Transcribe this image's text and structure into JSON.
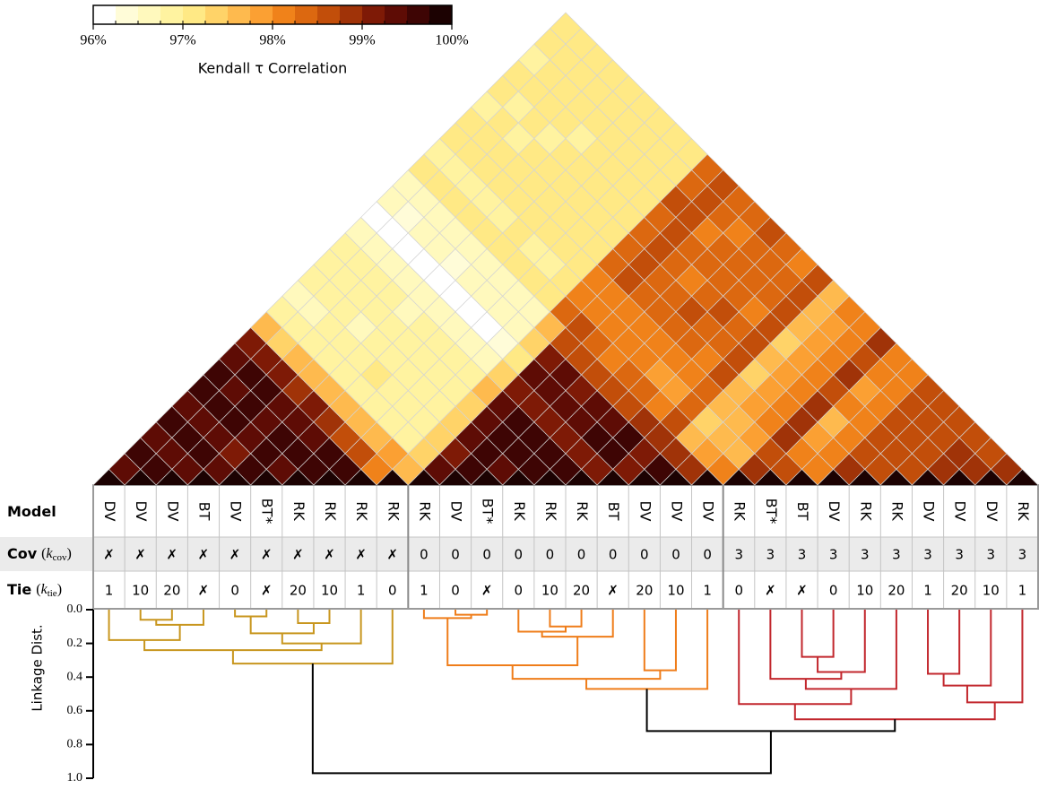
{
  "chart_data": [
    {
      "type": "heatmap",
      "clim": [
        96,
        100
      ],
      "colormap": [
        "#ffffff",
        "#fffcd8",
        "#fff9bd",
        "#fff3a0",
        "#ffe985",
        "#ffd368",
        "#feba4e",
        "#fba033",
        "#f0821a",
        "#dc6810",
        "#c24e0a",
        "#a03308",
        "#7e1a06",
        "#5e0c05",
        "#3e0504",
        "#1c0202"
      ],
      "colorbar_ticks": [
        {
          "value": 96,
          "label": "96%"
        },
        {
          "value": 97,
          "label": "97%"
        },
        {
          "value": 98,
          "label": "98%"
        },
        {
          "value": 99,
          "label": "99%"
        },
        {
          "value": 100,
          "label": "100%"
        }
      ],
      "colorbar_label": "Kendall τ Correlation",
      "matrix": [
        [
          100,
          99.3,
          99.5,
          99.4,
          99.6,
          99.4,
          99.5,
          99.5,
          99.4,
          99.0,
          97.5,
          96.8,
          96.7,
          96.8,
          96.9,
          96.8,
          96.6,
          96.1,
          96.5,
          96.6,
          97.0,
          96.9,
          97.0,
          97.1,
          96.9,
          97.0,
          97.0,
          96.9,
          97.0,
          97.0
        ],
        [
          100,
          99.7,
          99.4,
          99.5,
          99.3,
          99.5,
          99.4,
          99.5,
          99.0,
          97.4,
          96.8,
          96.7,
          96.8,
          96.8,
          96.9,
          96.6,
          96.1,
          96.4,
          96.6,
          97.1,
          96.9,
          97.0,
          97.0,
          97.0,
          96.9,
          97.2,
          97.0,
          97.0,
          97.1
        ],
        [
          100,
          99.4,
          99.5,
          99.3,
          99.5,
          99.6,
          99.5,
          99.0,
          97.5,
          96.9,
          96.8,
          96.8,
          96.9,
          96.8,
          96.6,
          96.2,
          96.5,
          96.6,
          97.0,
          96.9,
          97.1,
          97.0,
          96.9,
          97.0,
          97.1,
          97.2,
          97.0,
          97.0
        ],
        [
          100,
          99.3,
          99.2,
          99.4,
          99.3,
          99.4,
          98.9,
          97.6,
          96.8,
          96.9,
          96.7,
          96.8,
          96.8,
          96.7,
          96.2,
          96.5,
          96.7,
          97.0,
          96.9,
          97.0,
          97.1,
          97.0,
          96.9,
          97.0,
          97.0,
          97.1,
          97.0
        ],
        [
          100,
          99.6,
          99.5,
          99.5,
          99.4,
          99.0,
          97.6,
          96.8,
          96.8,
          96.9,
          96.8,
          96.7,
          96.6,
          96.1,
          96.4,
          96.6,
          97.0,
          96.9,
          97.0,
          97.0,
          97.1,
          97.0,
          96.9,
          97.0,
          97.0,
          97.1
        ],
        [
          100,
          99.4,
          99.5,
          99.3,
          98.9,
          97.6,
          96.9,
          97.0,
          96.9,
          96.9,
          96.8,
          96.7,
          96.1,
          96.5,
          96.7,
          97.1,
          97.0,
          97.1,
          97.1,
          97.0,
          97.1,
          97.0,
          97.1,
          97.0,
          97.1
        ],
        [
          100,
          99.7,
          99.5,
          98.7,
          97.7,
          96.8,
          96.8,
          96.9,
          96.8,
          96.8,
          96.6,
          96.1,
          96.5,
          96.6,
          97.0,
          96.9,
          97.0,
          97.1,
          97.0,
          97.0,
          97.0,
          97.1,
          97.0,
          97.0
        ],
        [
          100,
          99.5,
          98.7,
          97.7,
          96.8,
          96.8,
          96.8,
          96.9,
          96.8,
          96.6,
          96.2,
          96.5,
          96.7,
          97.0,
          96.9,
          97.0,
          97.0,
          97.1,
          97.0,
          97.0,
          97.0,
          97.1,
          97.0
        ],
        [
          100,
          98.2,
          97.8,
          96.9,
          96.9,
          96.8,
          96.9,
          96.9,
          96.7,
          96.3,
          96.6,
          96.7,
          97.1,
          97.0,
          97.0,
          97.1,
          97.0,
          97.1,
          97.0,
          97.0,
          97.1,
          97.1
        ],
        [
          100,
          97.6,
          97.4,
          97.3,
          97.4,
          97.4,
          97.5,
          97.3,
          97.0,
          97.3,
          97.6,
          98.3,
          98.0,
          98.0,
          98.4,
          98.3,
          98.4,
          98.3,
          98.5,
          98.3,
          98.4
        ],
        [
          100,
          99.3,
          99.2,
          99.4,
          99.3,
          99.3,
          99.1,
          99.3,
          99.2,
          98.6,
          98.6,
          98.1,
          98.2,
          98.6,
          98.7,
          98.6,
          98.5,
          98.6,
          98.6,
          98.7
        ],
        [
          100,
          99.7,
          99.5,
          99.5,
          99.6,
          99.1,
          99.4,
          99.3,
          98.6,
          98.3,
          98.0,
          98.1,
          98.3,
          98.4,
          98.3,
          98.3,
          98.2,
          98.3,
          98.4
        ],
        [
          100,
          99.4,
          99.5,
          99.5,
          99.0,
          99.3,
          99.2,
          98.5,
          98.2,
          98.1,
          98.0,
          98.3,
          98.3,
          98.2,
          98.3,
          98.3,
          98.2,
          98.3
        ],
        [
          100,
          99.6,
          99.5,
          99.1,
          99.4,
          99.3,
          98.6,
          98.4,
          98.0,
          98.1,
          98.4,
          98.5,
          98.4,
          98.3,
          98.4,
          98.4,
          98.5
        ],
        [
          100,
          99.7,
          99.2,
          99.5,
          99.4,
          98.7,
          98.3,
          97.9,
          98.0,
          98.3,
          98.4,
          98.5,
          98.3,
          98.3,
          98.4,
          98.3
        ],
        [
          100,
          99.2,
          99.6,
          99.5,
          98.8,
          98.2,
          97.9,
          98.0,
          98.2,
          98.3,
          98.4,
          98.2,
          98.3,
          98.3,
          98.2
        ],
        [
          100,
          99.0,
          99.1,
          98.9,
          98.6,
          98.3,
          98.4,
          98.5,
          98.6,
          98.5,
          98.5,
          98.6,
          98.5,
          98.6
        ],
        [
          100,
          99.6,
          98.8,
          97.7,
          97.3,
          97.5,
          97.6,
          97.4,
          97.5,
          97.4,
          97.5,
          97.6,
          97.7
        ],
        [
          100,
          98.9,
          97.9,
          97.6,
          97.7,
          97.9,
          97.8,
          97.9,
          97.8,
          97.8,
          97.9,
          98.0
        ],
        [
          100,
          98.1,
          97.7,
          97.8,
          98.0,
          98.1,
          98.0,
          98.1,
          98.0,
          98.0,
          98.2
        ],
        [
          100,
          98.9,
          98.7,
          98.8,
          98.9,
          98.8,
          98.7,
          98.8,
          98.7,
          98.9
        ],
        [
          100,
          98.6,
          98.0,
          97.9,
          97.5,
          98.0,
          97.9,
          98.0,
          98.1
        ],
        [
          100,
          98.2,
          98.1,
          98.0,
          98.1,
          98.0,
          98.2,
          98.1
        ],
        [
          100,
          98.8,
          98.6,
          98.5,
          98.6,
          98.5,
          98.6
        ],
        [
          100,
          98.7,
          98.6,
          98.7,
          98.6,
          98.7
        ],
        [
          100,
          98.5,
          98.6,
          98.5,
          98.6
        ],
        [
          100,
          98.9,
          98.8,
          98.7
        ],
        [
          100,
          98.9,
          98.7
        ],
        [
          100,
          98.8
        ],
        [
          100
        ]
      ]
    },
    {
      "type": "dendrogram",
      "ylabel": "Linkage Dist.",
      "ylim": [
        0,
        1
      ],
      "yticks": [
        {
          "value": 0,
          "label": "0.0"
        },
        0.2,
        0.4,
        0.6,
        0.8,
        {
          "value": 1,
          "label": "1.0"
        }
      ],
      "links": [
        {
          "children": [
            1,
            2
          ],
          "height": 0.06,
          "color": "#c8961e"
        },
        {
          "children": [
            30,
            3
          ],
          "height": 0.09,
          "color": "#c8961e"
        },
        {
          "children": [
            0,
            31
          ],
          "height": 0.18,
          "color": "#c8961e"
        },
        {
          "children": [
            4,
            5
          ],
          "height": 0.04,
          "color": "#c8961e"
        },
        {
          "children": [
            6,
            7
          ],
          "height": 0.08,
          "color": "#c8961e"
        },
        {
          "children": [
            33,
            34
          ],
          "height": 0.14,
          "color": "#c8961e"
        },
        {
          "children": [
            35,
            8
          ],
          "height": 0.2,
          "color": "#c8961e"
        },
        {
          "children": [
            32,
            36
          ],
          "height": 0.24,
          "color": "#c8961e"
        },
        {
          "children": [
            37,
            9
          ],
          "height": 0.32,
          "color": "#c8961e"
        },
        {
          "children": [
            11,
            12
          ],
          "height": 0.03,
          "color": "#ef7d1a"
        },
        {
          "children": [
            10,
            39
          ],
          "height": 0.05,
          "color": "#ef7d1a"
        },
        {
          "children": [
            14,
            15
          ],
          "height": 0.1,
          "color": "#ef7d1a"
        },
        {
          "children": [
            13,
            41
          ],
          "height": 0.13,
          "color": "#ef7d1a"
        },
        {
          "children": [
            42,
            16
          ],
          "height": 0.16,
          "color": "#ef7d1a"
        },
        {
          "children": [
            40,
            43
          ],
          "height": 0.33,
          "color": "#ef7d1a"
        },
        {
          "children": [
            17,
            18
          ],
          "height": 0.36,
          "color": "#ef7d1a"
        },
        {
          "children": [
            44,
            45
          ],
          "height": 0.41,
          "color": "#ef7d1a"
        },
        {
          "children": [
            46,
            19
          ],
          "height": 0.47,
          "color": "#ef7d1a"
        },
        {
          "children": [
            22,
            23
          ],
          "height": 0.28,
          "color": "#c2272d"
        },
        {
          "children": [
            48,
            24
          ],
          "height": 0.37,
          "color": "#c2272d"
        },
        {
          "children": [
            21,
            49
          ],
          "height": 0.41,
          "color": "#c2272d"
        },
        {
          "children": [
            50,
            25
          ],
          "height": 0.47,
          "color": "#c2272d"
        },
        {
          "children": [
            20,
            51
          ],
          "height": 0.56,
          "color": "#c2272d"
        },
        {
          "children": [
            26,
            27
          ],
          "height": 0.38,
          "color": "#c2272d"
        },
        {
          "children": [
            53,
            28
          ],
          "height": 0.45,
          "color": "#c2272d"
        },
        {
          "children": [
            54,
            29
          ],
          "height": 0.55,
          "color": "#c2272d"
        },
        {
          "children": [
            52,
            55
          ],
          "height": 0.65,
          "color": "#c2272d"
        },
        {
          "children": [
            47,
            56
          ],
          "height": 0.72,
          "color": "#000000"
        },
        {
          "children": [
            38,
            57
          ],
          "height": 0.97,
          "color": "#000000"
        }
      ]
    }
  ],
  "table": {
    "row_labels": [
      {
        "name": "Model"
      },
      {
        "name": "Cov",
        "symbol": [
          "(",
          "k",
          "cov",
          ")"
        ]
      },
      {
        "name": "Tie",
        "symbol": [
          "(",
          "k",
          "tie",
          ")"
        ]
      }
    ],
    "rows": [
      [
        "DV",
        "DV",
        "DV",
        "BT",
        "DV",
        "BT*",
        "RK",
        "RK",
        "RK",
        "RK",
        "RK",
        "DV",
        "BT*",
        "RK",
        "RK",
        "RK",
        "BT",
        "DV",
        "DV",
        "DV",
        "RK",
        "BT*",
        "BT",
        "DV",
        "RK",
        "RK",
        "DV",
        "DV",
        "DV",
        "RK"
      ],
      [
        "✗",
        "✗",
        "✗",
        "✗",
        "✗",
        "✗",
        "✗",
        "✗",
        "✗",
        "✗",
        0,
        0,
        0,
        0,
        0,
        0,
        0,
        0,
        0,
        0,
        3,
        3,
        3,
        3,
        3,
        3,
        3,
        3,
        3,
        3
      ],
      [
        1,
        10,
        20,
        "✗",
        0,
        "✗",
        20,
        10,
        1,
        0,
        1,
        0,
        "✗",
        0,
        10,
        20,
        "✗",
        20,
        10,
        1,
        0,
        "✗",
        "✗",
        0,
        10,
        20,
        1,
        20,
        10,
        1
      ]
    ]
  }
}
